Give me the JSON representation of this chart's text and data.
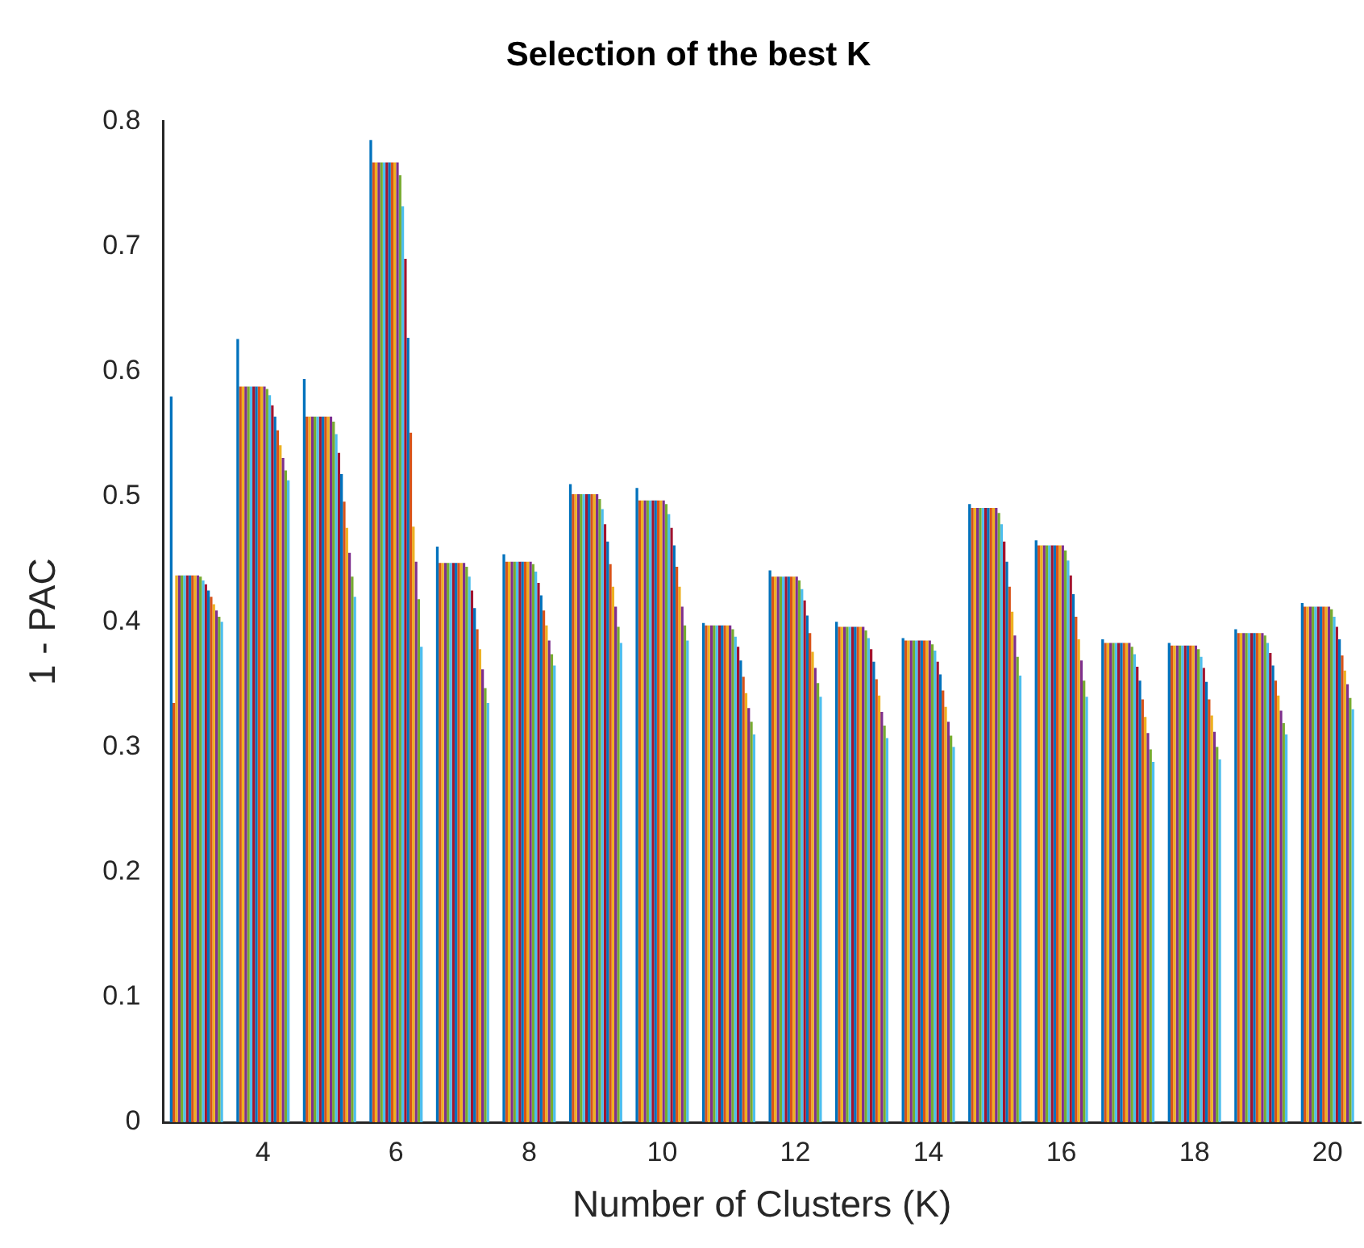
{
  "chart_data": {
    "type": "bar",
    "title": "Selection of the best K",
    "xlabel": "Number of Clusters (K)",
    "ylabel": "1 - PAC",
    "categories": [
      null,
      "4",
      null,
      "6",
      null,
      "8",
      null,
      "10",
      null,
      "12",
      null,
      "14",
      null,
      "16",
      null,
      "18",
      null,
      "20"
    ],
    "ylim": [
      0,
      0.8
    ],
    "yticks": [
      0,
      0.1,
      0.2,
      0.3,
      0.4,
      0.5,
      0.6,
      0.7,
      0.8
    ],
    "grid": false,
    "legend": false,
    "series": [
      {
        "color": "#0072bd",
        "values": [
          0.58,
          0.626,
          0.594,
          0.785,
          0.46,
          0.454,
          0.51,
          0.507,
          0.399,
          0.441,
          0.4,
          0.387,
          0.494,
          0.465,
          0.386,
          0.383,
          0.394,
          0.415
        ]
      },
      {
        "color": "#d95319",
        "values": [
          0.335,
          0.588,
          0.564,
          0.767,
          0.447,
          0.448,
          0.502,
          0.497,
          0.397,
          0.436,
          0.396,
          0.385,
          0.491,
          0.461,
          0.383,
          0.381,
          0.391,
          0.412
        ]
      },
      {
        "color": "#edb120",
        "values": [
          0.437,
          0.588,
          0.564,
          0.767,
          0.447,
          0.448,
          0.502,
          0.497,
          0.397,
          0.436,
          0.396,
          0.385,
          0.491,
          0.461,
          0.383,
          0.381,
          0.391,
          0.412
        ]
      },
      {
        "color": "#7e2f8e",
        "values": [
          0.437,
          0.588,
          0.564,
          0.767,
          0.447,
          0.448,
          0.502,
          0.497,
          0.397,
          0.436,
          0.396,
          0.385,
          0.491,
          0.461,
          0.383,
          0.381,
          0.391,
          0.412
        ]
      },
      {
        "color": "#77ac30",
        "values": [
          0.437,
          0.588,
          0.564,
          0.767,
          0.447,
          0.448,
          0.502,
          0.497,
          0.397,
          0.436,
          0.396,
          0.385,
          0.491,
          0.461,
          0.383,
          0.381,
          0.391,
          0.412
        ]
      },
      {
        "color": "#4dbeee",
        "values": [
          0.437,
          0.588,
          0.564,
          0.767,
          0.447,
          0.448,
          0.502,
          0.497,
          0.397,
          0.436,
          0.396,
          0.385,
          0.491,
          0.461,
          0.383,
          0.381,
          0.391,
          0.412
        ]
      },
      {
        "color": "#a2142f",
        "values": [
          0.437,
          0.588,
          0.564,
          0.767,
          0.447,
          0.448,
          0.502,
          0.497,
          0.397,
          0.436,
          0.396,
          0.385,
          0.491,
          0.461,
          0.383,
          0.381,
          0.391,
          0.412
        ]
      },
      {
        "color": "#0072bd",
        "values": [
          0.437,
          0.588,
          0.564,
          0.767,
          0.447,
          0.448,
          0.502,
          0.497,
          0.397,
          0.436,
          0.396,
          0.385,
          0.491,
          0.461,
          0.383,
          0.381,
          0.391,
          0.412
        ]
      },
      {
        "color": "#d95319",
        "values": [
          0.437,
          0.588,
          0.564,
          0.767,
          0.447,
          0.448,
          0.502,
          0.497,
          0.397,
          0.436,
          0.396,
          0.385,
          0.491,
          0.461,
          0.383,
          0.381,
          0.391,
          0.412
        ]
      },
      {
        "color": "#edb120",
        "values": [
          0.437,
          0.588,
          0.564,
          0.767,
          0.447,
          0.448,
          0.502,
          0.497,
          0.397,
          0.436,
          0.396,
          0.385,
          0.491,
          0.461,
          0.383,
          0.381,
          0.391,
          0.412
        ]
      },
      {
        "color": "#7e2f8e",
        "values": [
          0.437,
          0.588,
          0.564,
          0.767,
          0.447,
          0.448,
          0.502,
          0.497,
          0.397,
          0.436,
          0.396,
          0.385,
          0.491,
          0.461,
          0.383,
          0.381,
          0.391,
          0.412
        ]
      },
      {
        "color": "#77ac30",
        "values": [
          0.436,
          0.586,
          0.56,
          0.757,
          0.444,
          0.446,
          0.498,
          0.494,
          0.394,
          0.433,
          0.393,
          0.382,
          0.487,
          0.457,
          0.38,
          0.378,
          0.389,
          0.41
        ]
      },
      {
        "color": "#4dbeee",
        "values": [
          0.433,
          0.581,
          0.55,
          0.732,
          0.436,
          0.44,
          0.49,
          0.486,
          0.388,
          0.426,
          0.387,
          0.377,
          0.478,
          0.449,
          0.374,
          0.372,
          0.383,
          0.404
        ]
      },
      {
        "color": "#a2142f",
        "values": [
          0.43,
          0.573,
          0.535,
          0.69,
          0.425,
          0.431,
          0.478,
          0.475,
          0.38,
          0.417,
          0.378,
          0.368,
          0.464,
          0.437,
          0.364,
          0.363,
          0.375,
          0.396
        ]
      },
      {
        "color": "#0072bd",
        "values": [
          0.425,
          0.564,
          0.518,
          0.627,
          0.411,
          0.421,
          0.464,
          0.461,
          0.369,
          0.405,
          0.368,
          0.358,
          0.448,
          0.422,
          0.353,
          0.352,
          0.365,
          0.386
        ]
      },
      {
        "color": "#d95319",
        "values": [
          0.42,
          0.553,
          0.496,
          0.551,
          0.394,
          0.409,
          0.446,
          0.444,
          0.356,
          0.391,
          0.354,
          0.345,
          0.428,
          0.404,
          0.338,
          0.338,
          0.353,
          0.373
        ]
      },
      {
        "color": "#edb120",
        "values": [
          0.414,
          0.541,
          0.475,
          0.476,
          0.378,
          0.397,
          0.428,
          0.428,
          0.343,
          0.376,
          0.341,
          0.332,
          0.408,
          0.386,
          0.324,
          0.325,
          0.341,
          0.361
        ]
      },
      {
        "color": "#7e2f8e",
        "values": [
          0.409,
          0.531,
          0.455,
          0.448,
          0.362,
          0.385,
          0.412,
          0.412,
          0.331,
          0.363,
          0.328,
          0.32,
          0.389,
          0.369,
          0.311,
          0.312,
          0.329,
          0.35
        ]
      },
      {
        "color": "#77ac30",
        "values": [
          0.404,
          0.521,
          0.436,
          0.418,
          0.347,
          0.374,
          0.396,
          0.397,
          0.32,
          0.351,
          0.317,
          0.309,
          0.372,
          0.353,
          0.298,
          0.3,
          0.319,
          0.339
        ]
      },
      {
        "color": "#4dbeee",
        "values": [
          0.4,
          0.513,
          0.42,
          0.38,
          0.335,
          0.365,
          0.383,
          0.385,
          0.31,
          0.34,
          0.307,
          0.3,
          0.357,
          0.34,
          0.288,
          0.29,
          0.31,
          0.33
        ]
      }
    ]
  }
}
